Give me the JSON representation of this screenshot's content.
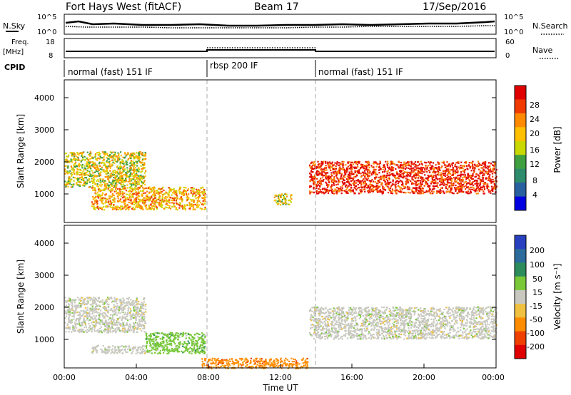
{
  "header": {
    "title": "Fort Hays West (fitACF)",
    "beam": "Beam 17",
    "date": "17/Sep/2016"
  },
  "top_panels": {
    "nsky_label": "N.Sky",
    "nsky_ticks": [
      "10^5",
      "10^0"
    ],
    "nsearch_label": "N.Search",
    "nsearch_ticks": [
      "10^5",
      "10^0"
    ],
    "freq_label": "Freq.",
    "freq_unit": "[MHz]",
    "freq_ticks": [
      "18",
      "8"
    ],
    "nave_label": "Nave",
    "nave_ticks": [
      "60",
      "0"
    ],
    "cpid_label": "CPID",
    "cpid_segments": [
      {
        "label": "normal (fast) 151 IF",
        "start": 0,
        "end": 8
      },
      {
        "label": "rbsp 200 IF",
        "start": 8,
        "end": 14
      },
      {
        "label": "normal (fast) 151 IF",
        "start": 14,
        "end": 24
      }
    ]
  },
  "colorbars": {
    "power": {
      "label": "Power [dB]",
      "ticks": [
        "28",
        "24",
        "20",
        "16",
        "12",
        "8",
        "4"
      ],
      "colors": [
        "#e00000",
        "#f03a00",
        "#ff8a00",
        "#ffc000",
        "#c8d800",
        "#40a040",
        "#2c8c6c",
        "#2860a0",
        "#0000e0"
      ]
    },
    "velocity": {
      "label": "Velocity [m s⁻¹]",
      "ticks": [
        "200",
        "100",
        "50",
        "15",
        "-15",
        "-50",
        "-100",
        "-200"
      ],
      "colors": [
        "#2840c0",
        "#2c6c9c",
        "#2c8c5c",
        "#78c838",
        "#c8c8c0",
        "#f0c040",
        "#ff8c00",
        "#f04000",
        "#e00000"
      ]
    }
  },
  "axes": {
    "ylabel": "Slant Range [km]",
    "yticks": [
      "4000",
      "3000",
      "2000",
      "1000"
    ],
    "xlabel": "Time UT",
    "xticks": [
      "00:00",
      "04:00",
      "08:00",
      "12:00",
      "16:00",
      "20:00",
      "00:00"
    ]
  },
  "chart_data": [
    {
      "type": "heatmap",
      "title": "Power",
      "xlabel": "Time UT",
      "ylabel": "Slant Range [km]",
      "xlim_hours": [
        0,
        24
      ],
      "ylim_km": [
        180,
        4620
      ],
      "colorbar_label": "Power [dB]",
      "regions": [
        {
          "t_start": 0.0,
          "t_end": 4.5,
          "range_start_km": 1300,
          "range_end_km": 2400,
          "power_db": 14
        },
        {
          "t_start": 1.5,
          "t_end": 7.8,
          "range_start_km": 600,
          "range_end_km": 1300,
          "power_db": 16
        },
        {
          "t_start": 11.6,
          "t_end": 12.6,
          "range_start_km": 750,
          "range_end_km": 1100,
          "power_db": 12
        },
        {
          "t_start": 13.6,
          "t_end": 24.0,
          "range_start_km": 1100,
          "range_end_km": 2100,
          "power_db": 24
        }
      ]
    },
    {
      "type": "heatmap",
      "title": "Velocity",
      "xlabel": "Time UT",
      "ylabel": "Slant Range [km]",
      "xlim_hours": [
        0,
        24
      ],
      "ylim_km": [
        180,
        4620
      ],
      "colorbar_label": "Velocity [m s⁻¹]",
      "regions": [
        {
          "t_start": 0.0,
          "t_end": 4.5,
          "range_start_km": 1300,
          "range_end_km": 2400,
          "velocity_ms": 0
        },
        {
          "t_start": 1.5,
          "t_end": 4.5,
          "range_start_km": 650,
          "range_end_km": 900,
          "velocity_ms": 0
        },
        {
          "t_start": 4.5,
          "t_end": 7.8,
          "range_start_km": 650,
          "range_end_km": 1300,
          "velocity_ms": 30
        },
        {
          "t_start": 7.6,
          "t_end": 13.5,
          "range_start_km": 180,
          "range_end_km": 500,
          "velocity_ms": -60
        },
        {
          "t_start": 13.6,
          "t_end": 24.0,
          "range_start_km": 1100,
          "range_end_km": 2100,
          "velocity_ms": 0
        }
      ]
    }
  ]
}
